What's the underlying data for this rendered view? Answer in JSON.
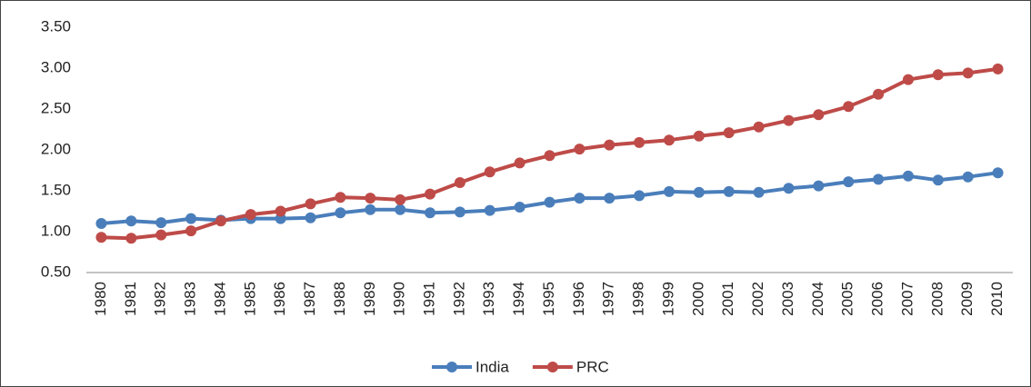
{
  "chart_data": {
    "type": "line",
    "categories": [
      "1980",
      "1981",
      "1982",
      "1983",
      "1984",
      "1985",
      "1986",
      "1987",
      "1988",
      "1989",
      "1990",
      "1991",
      "1992",
      "1993",
      "1994",
      "1995",
      "1996",
      "1997",
      "1998",
      "1999",
      "2000",
      "2001",
      "2002",
      "2003",
      "2004",
      "2005",
      "2006",
      "2007",
      "2008",
      "2009",
      "2010"
    ],
    "series": [
      {
        "name": "India",
        "color": "#4a7ebb",
        "values": [
          1.1,
          1.13,
          1.11,
          1.16,
          1.14,
          1.16,
          1.16,
          1.17,
          1.23,
          1.27,
          1.27,
          1.23,
          1.24,
          1.26,
          1.3,
          1.36,
          1.41,
          1.41,
          1.44,
          1.49,
          1.48,
          1.49,
          1.48,
          1.53,
          1.56,
          1.61,
          1.64,
          1.68,
          1.63,
          1.67,
          1.72
        ]
      },
      {
        "name": "PRC",
        "color": "#be4b48",
        "values": [
          0.93,
          0.92,
          0.96,
          1.01,
          1.13,
          1.21,
          1.25,
          1.34,
          1.42,
          1.41,
          1.39,
          1.46,
          1.6,
          1.73,
          1.84,
          1.93,
          2.01,
          2.06,
          2.09,
          2.12,
          2.17,
          2.21,
          2.28,
          2.36,
          2.43,
          2.53,
          2.68,
          2.86,
          2.92,
          2.94,
          2.99
        ]
      }
    ],
    "ylim": [
      0.5,
      3.5
    ],
    "yticks": [
      {
        "value": 0.5,
        "label": "0.50"
      },
      {
        "value": 1,
        "label": "1.00"
      },
      {
        "value": 1.5,
        "label": "1.50"
      },
      {
        "value": 2,
        "label": "2.00"
      },
      {
        "value": 2.5,
        "label": "2.50"
      },
      {
        "value": 3,
        "label": "3.00"
      },
      {
        "value": 3.5,
        "label": "3.50"
      }
    ],
    "grid": false,
    "legend": "bottom"
  }
}
